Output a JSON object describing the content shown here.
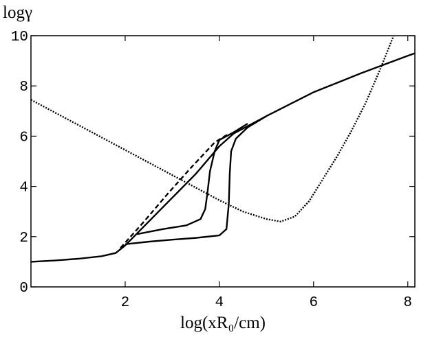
{
  "chart_data": {
    "type": "line",
    "y_label": "logγ",
    "x_label": "log(xR₀/cm)",
    "xlim": [
      0,
      8.15
    ],
    "ylim": [
      0,
      10
    ],
    "xticks": [
      2,
      4,
      6,
      8
    ],
    "yticks": [
      0,
      2,
      4,
      6,
      8,
      10
    ],
    "series": [
      {
        "color": "#000000",
        "dash": "solid",
        "x": [
          0,
          0.5,
          1,
          1.5,
          1.8,
          2,
          2.5,
          3,
          3.5,
          4,
          4.3,
          5,
          6,
          7,
          8,
          8.15
        ],
        "values": [
          1.0,
          1.05,
          1.12,
          1.22,
          1.35,
          1.65,
          2.6,
          3.55,
          4.5,
          5.6,
          6.1,
          6.8,
          7.75,
          8.5,
          9.2,
          9.3
        ]
      },
      {
        "color": "#000000",
        "dash": "solid",
        "x": [
          2.25,
          2.8,
          3.3,
          3.6,
          3.7,
          3.75,
          3.8,
          3.9,
          4.0,
          4.3,
          4.6
        ],
        "values": [
          2.1,
          2.3,
          2.45,
          2.7,
          3.1,
          3.8,
          4.6,
          5.4,
          5.85,
          6.15,
          6.5
        ]
      },
      {
        "color": "#000000",
        "dash": "solid",
        "x": [
          2.0,
          2.5,
          3.0,
          3.5,
          4.0,
          4.15,
          4.2,
          4.22,
          4.25,
          4.35,
          4.6,
          5.0
        ],
        "values": [
          1.7,
          1.8,
          1.88,
          1.95,
          2.05,
          2.3,
          3.3,
          4.5,
          5.4,
          5.9,
          6.35,
          6.8
        ]
      },
      {
        "color": "#000000",
        "dash": "dashed",
        "x": [
          1.9,
          2.4,
          2.9,
          3.4,
          3.9,
          4.2
        ],
        "values": [
          1.55,
          2.6,
          3.7,
          4.75,
          5.75,
          6.1
        ]
      },
      {
        "color": "#000000",
        "dash": "dotted",
        "x": [
          0,
          1,
          2,
          3,
          3.5,
          4,
          4.5,
          5,
          5.3,
          5.6,
          5.9,
          6.2,
          6.5,
          6.8,
          7.1,
          7.4,
          7.7
        ],
        "values": [
          7.45,
          6.45,
          5.45,
          4.45,
          3.95,
          3.45,
          3.0,
          2.7,
          2.6,
          2.8,
          3.4,
          4.3,
          5.2,
          6.2,
          7.3,
          8.6,
          10.0
        ]
      }
    ]
  }
}
